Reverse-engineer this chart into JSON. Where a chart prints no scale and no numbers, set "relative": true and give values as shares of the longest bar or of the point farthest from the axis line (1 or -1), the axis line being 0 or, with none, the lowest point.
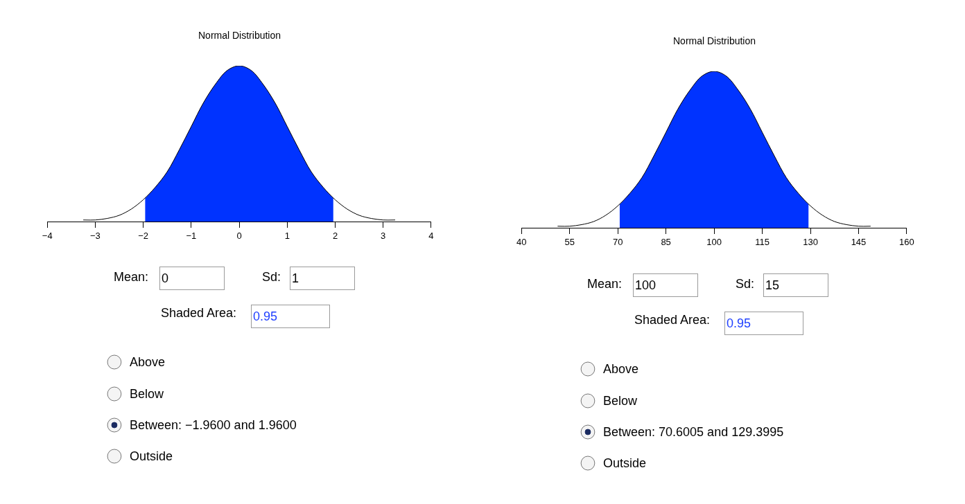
{
  "chart_data": [
    {
      "type": "area",
      "title": "Normal Distribution",
      "relative": true,
      "tick_labels": "x",
      "grid": false,
      "xlim": [
        -4,
        4
      ],
      "xticks": [
        {
          "value": -4,
          "label": "−4"
        },
        {
          "value": -3,
          "label": "−3"
        },
        {
          "value": -2,
          "label": "−2"
        },
        {
          "value": -1,
          "label": "−1"
        },
        0,
        1,
        2,
        3,
        4
      ],
      "series": [
        {
          "color": "#0033ff",
          "x": [
            -1.96,
            -1.75,
            -1.5,
            -1.25,
            -1,
            -0.75,
            -0.5,
            -0.25,
            0,
            0.25,
            0.5,
            0.75,
            1,
            1.25,
            1.5,
            1.75,
            1.96
          ],
          "values": [
            0.15,
            0.22,
            0.32,
            0.46,
            0.61,
            0.76,
            0.88,
            0.97,
            1,
            0.97,
            0.88,
            0.76,
            0.61,
            0.46,
            0.32,
            0.22,
            0.15
          ]
        },
        {
          "type": "line",
          "color": "#000000",
          "x": [
            -3.25,
            -3,
            -2.75,
            -2.5,
            -2.25,
            -2,
            -1.75,
            -1.5,
            -1.25,
            -1,
            -0.75,
            -0.5,
            -0.25,
            0,
            0.25,
            0.5,
            0.75,
            1,
            1.25,
            1.5,
            1.75,
            2,
            2.25,
            2.5,
            2.75,
            3,
            3.25
          ],
          "values": [
            0.01,
            0.01,
            0.02,
            0.04,
            0.08,
            0.14,
            0.22,
            0.32,
            0.46,
            0.61,
            0.76,
            0.88,
            0.97,
            1,
            0.97,
            0.88,
            0.76,
            0.61,
            0.46,
            0.32,
            0.22,
            0.14,
            0.08,
            0.04,
            0.02,
            0.01,
            0.01
          ]
        }
      ],
      "annotations": [
        "Mean:",
        "0",
        "Sd:",
        "1",
        "Shaded Area:",
        "0.95",
        "Above",
        "Below",
        "Between: −1.9600 and 1.9600",
        "Outside"
      ]
    },
    {
      "type": "area",
      "title": "Normal Distribution",
      "relative": true,
      "tick_labels": "x",
      "grid": false,
      "xlim": [
        40,
        160
      ],
      "xticks": [
        40,
        55,
        70,
        85,
        100,
        115,
        130,
        145,
        160
      ],
      "series": [
        {
          "color": "#0033ff",
          "x": [
            70.6,
            73.75,
            77.5,
            81.25,
            85,
            88.75,
            92.5,
            96.25,
            100,
            103.75,
            107.5,
            111.25,
            115,
            118.75,
            122.5,
            126.25,
            129.4
          ],
          "values": [
            0.15,
            0.22,
            0.32,
            0.46,
            0.61,
            0.76,
            0.88,
            0.97,
            1,
            0.97,
            0.88,
            0.76,
            0.61,
            0.46,
            0.32,
            0.22,
            0.15
          ]
        },
        {
          "type": "line",
          "color": "#000000",
          "x": [
            51.25,
            55,
            58.75,
            62.5,
            66.25,
            70,
            73.75,
            77.5,
            81.25,
            85,
            88.75,
            92.5,
            96.25,
            100,
            103.75,
            107.5,
            111.25,
            115,
            118.75,
            122.5,
            126.25,
            130,
            133.75,
            137.5,
            141.25,
            145,
            148.75
          ],
          "values": [
            0.01,
            0.01,
            0.02,
            0.04,
            0.08,
            0.14,
            0.22,
            0.32,
            0.46,
            0.61,
            0.76,
            0.88,
            0.97,
            1,
            0.97,
            0.88,
            0.76,
            0.61,
            0.46,
            0.32,
            0.22,
            0.14,
            0.08,
            0.04,
            0.02,
            0.01,
            0.01
          ]
        }
      ],
      "annotations": [
        "Mean:",
        "100",
        "Sd:",
        "15",
        "Shaded Area:",
        "0.95",
        "Above",
        "Below",
        "Between: 70.6005 and 129.3995",
        "Outside"
      ]
    }
  ]
}
